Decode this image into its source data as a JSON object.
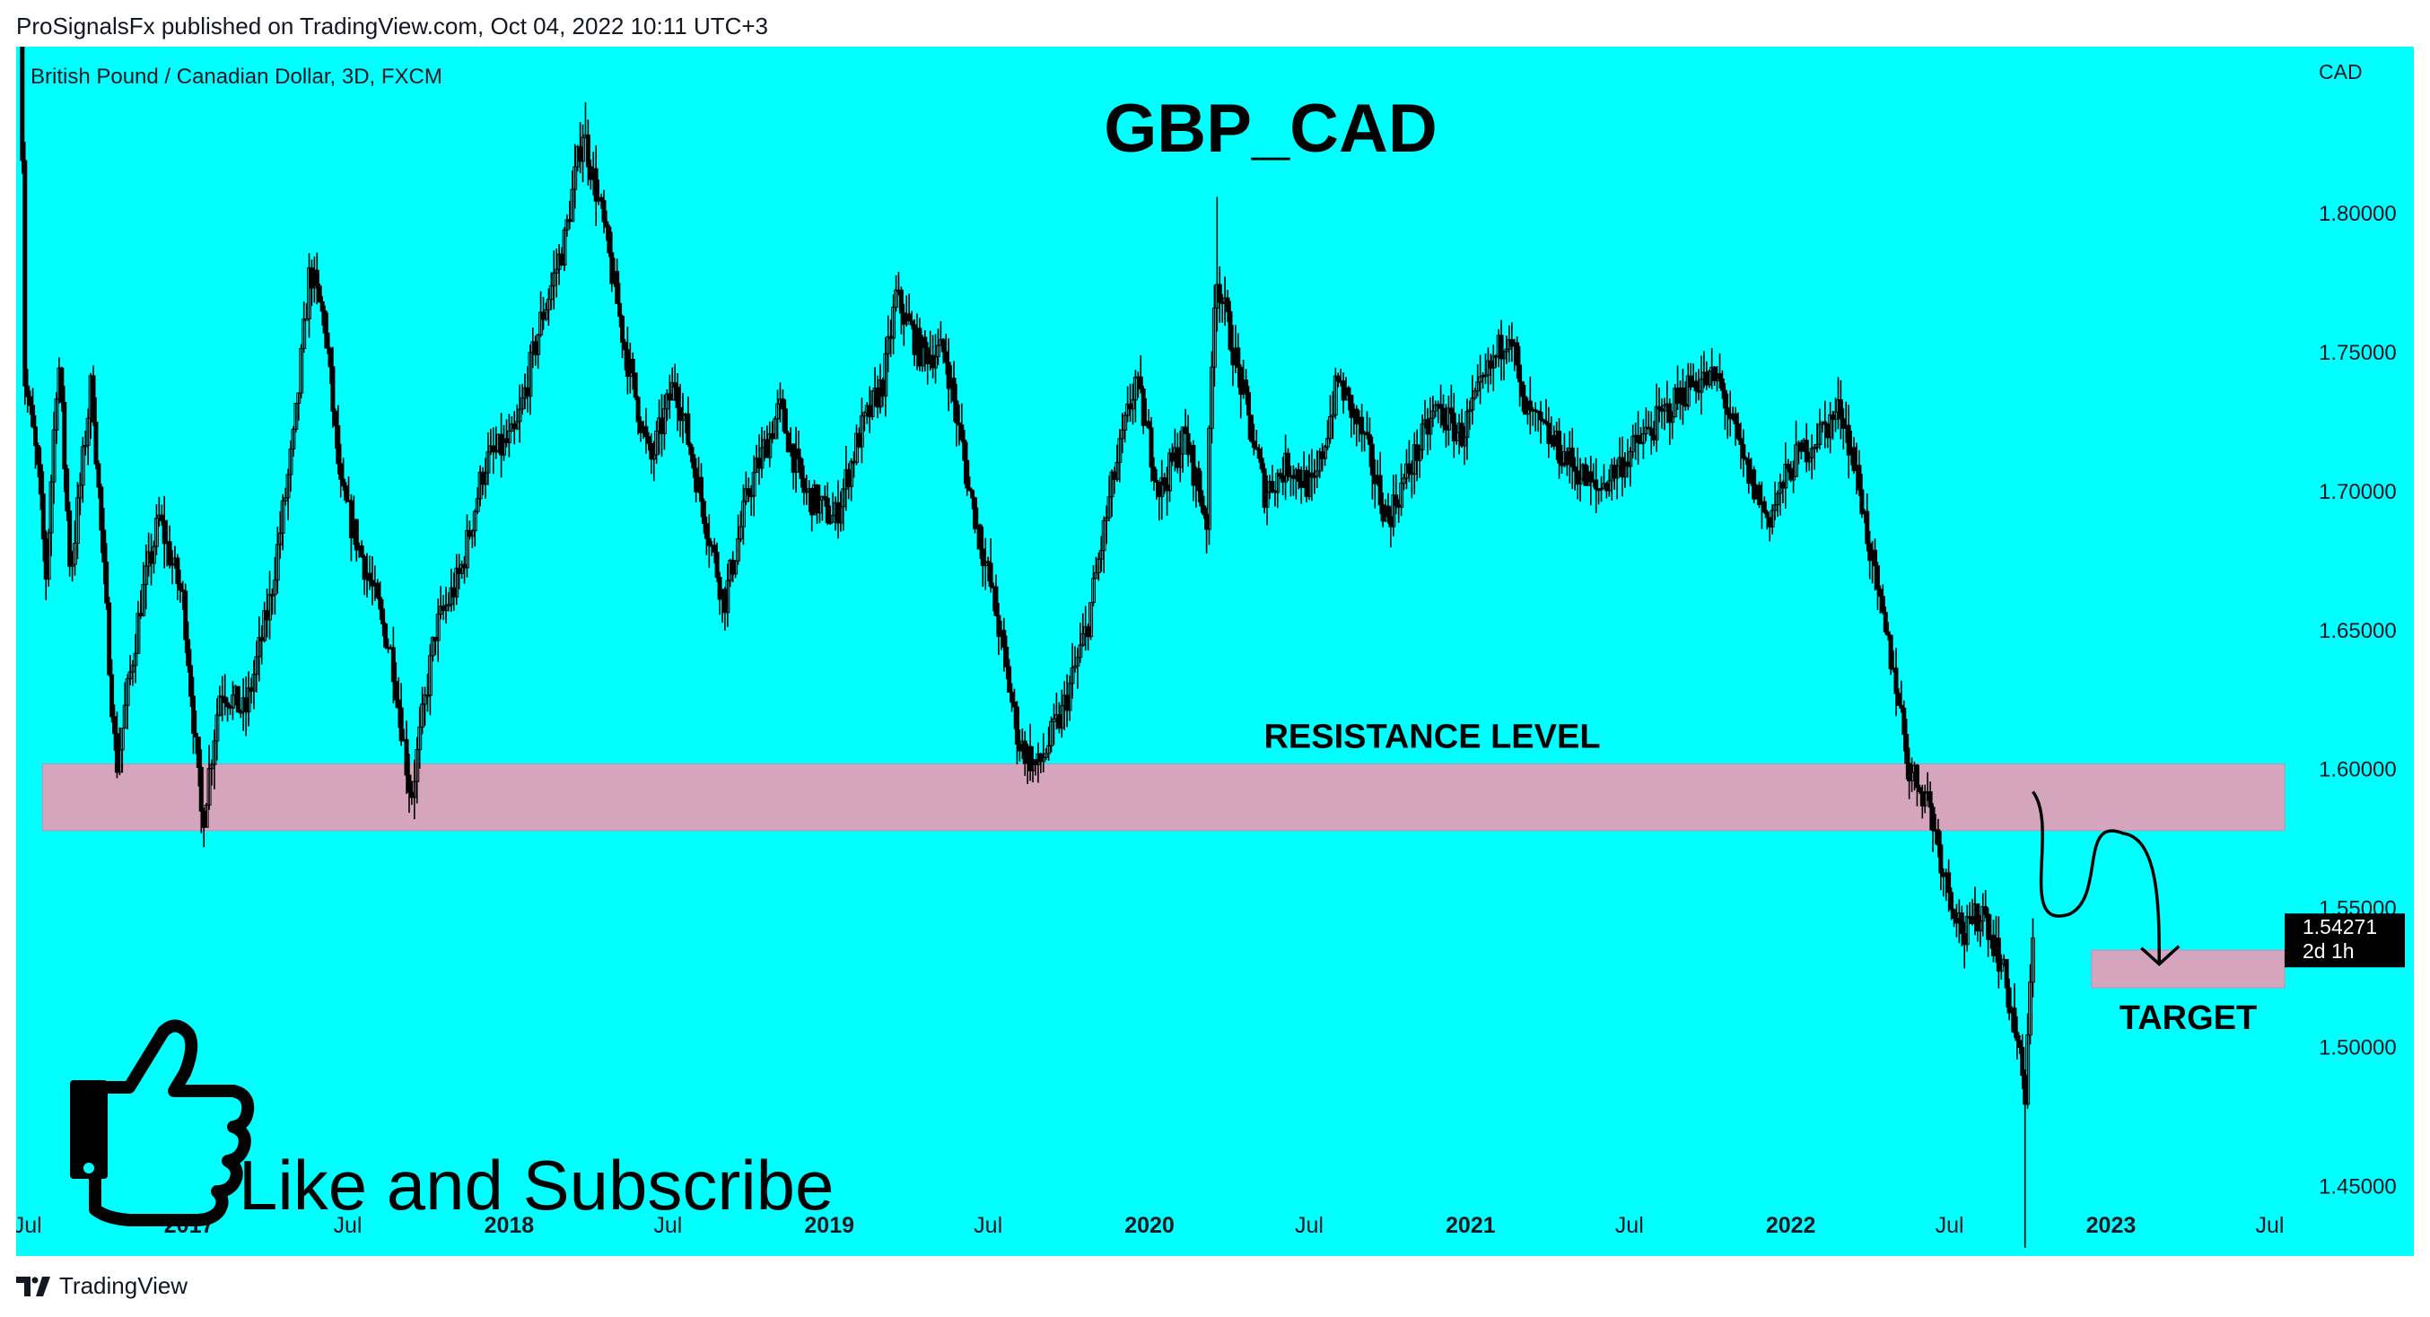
{
  "header": {
    "published": "ProSignalsFx published on TradingView.com, Oct 04, 2022 10:11 UTC+3"
  },
  "footer": {
    "brand": "TradingView"
  },
  "colors": {
    "background": "#00FFFF",
    "zone": "#D4A5BD",
    "candle": "#000000",
    "text": "#000000",
    "price_tag_bg": "#000000",
    "price_tag_text": "#FFFFFF"
  },
  "icons": {
    "thumb": "thumbs-up-icon",
    "brand": "tradingview-logo-icon"
  },
  "chart_data": {
    "type": "candlestick",
    "title": "GBP_CAD",
    "subtitle": "British Pound / Canadian Dollar, 3D, FXCM",
    "currency": "CAD",
    "ylim": [
      1.425,
      1.86
    ],
    "xlim": [
      "2016-06-18",
      "2023-07-20"
    ],
    "y_ticks": [
      "1.45000",
      "1.50000",
      "1.55000",
      "1.60000",
      "1.65000",
      "1.70000",
      "1.75000",
      "1.80000"
    ],
    "x_ticks": [
      {
        "label": "Jul",
        "date": "2016-07-01",
        "bold": false
      },
      {
        "label": "2017",
        "date": "2017-01-01",
        "bold": true
      },
      {
        "label": "Jul",
        "date": "2017-07-01",
        "bold": false
      },
      {
        "label": "2018",
        "date": "2018-01-01",
        "bold": true
      },
      {
        "label": "Jul",
        "date": "2018-07-01",
        "bold": false
      },
      {
        "label": "2019",
        "date": "2019-01-01",
        "bold": true
      },
      {
        "label": "Jul",
        "date": "2019-07-01",
        "bold": false
      },
      {
        "label": "2020",
        "date": "2020-01-01",
        "bold": true
      },
      {
        "label": "Jul",
        "date": "2020-07-01",
        "bold": false
      },
      {
        "label": "2021",
        "date": "2021-01-01",
        "bold": true
      },
      {
        "label": "Jul",
        "date": "2021-07-01",
        "bold": false
      },
      {
        "label": "2022",
        "date": "2022-01-01",
        "bold": true
      },
      {
        "label": "Jul",
        "date": "2022-07-01",
        "bold": false
      },
      {
        "label": "2023",
        "date": "2023-01-01",
        "bold": true
      },
      {
        "label": "Jul",
        "date": "2023-07-01",
        "bold": false
      }
    ],
    "price_path": [
      [
        "2016-06-22",
        1.905
      ],
      [
        "2016-06-28",
        1.74
      ],
      [
        "2016-07-12",
        1.71
      ],
      [
        "2016-07-22",
        1.67
      ],
      [
        "2016-08-05",
        1.75
      ],
      [
        "2016-08-19",
        1.67
      ],
      [
        "2016-09-12",
        1.74
      ],
      [
        "2016-10-10",
        1.6
      ],
      [
        "2016-11-07",
        1.66
      ],
      [
        "2016-11-28",
        1.69
      ],
      [
        "2016-12-26",
        1.66
      ],
      [
        "2017-01-16",
        1.58
      ],
      [
        "2017-02-06",
        1.63
      ],
      [
        "2017-03-06",
        1.62
      ],
      [
        "2017-04-03",
        1.66
      ],
      [
        "2017-05-01",
        1.72
      ],
      [
        "2017-05-19",
        1.78
      ],
      [
        "2017-06-05",
        1.76
      ],
      [
        "2017-06-23",
        1.7
      ],
      [
        "2017-07-24",
        1.67
      ],
      [
        "2017-08-21",
        1.64
      ],
      [
        "2017-09-11",
        1.59
      ],
      [
        "2017-10-09",
        1.65
      ],
      [
        "2017-11-06",
        1.67
      ],
      [
        "2017-12-04",
        1.71
      ],
      [
        "2018-01-08",
        1.72
      ],
      [
        "2018-02-05",
        1.76
      ],
      [
        "2018-03-05",
        1.79
      ],
      [
        "2018-03-26",
        1.83
      ],
      [
        "2018-04-16",
        1.8
      ],
      [
        "2018-05-14",
        1.75
      ],
      [
        "2018-06-11",
        1.71
      ],
      [
        "2018-07-09",
        1.74
      ],
      [
        "2018-08-06",
        1.7
      ],
      [
        "2018-09-03",
        1.66
      ],
      [
        "2018-10-01",
        1.7
      ],
      [
        "2018-11-05",
        1.73
      ],
      [
        "2018-12-03",
        1.7
      ],
      [
        "2019-01-07",
        1.69
      ],
      [
        "2019-02-04",
        1.72
      ],
      [
        "2019-03-04",
        1.74
      ],
      [
        "2019-03-18",
        1.77
      ],
      [
        "2019-04-15",
        1.75
      ],
      [
        "2019-05-13",
        1.75
      ],
      [
        "2019-06-10",
        1.7
      ],
      [
        "2019-07-08",
        1.66
      ],
      [
        "2019-08-05",
        1.61
      ],
      [
        "2019-08-26",
        1.6
      ],
      [
        "2019-09-23",
        1.62
      ],
      [
        "2019-10-21",
        1.65
      ],
      [
        "2019-11-18",
        1.7
      ],
      [
        "2019-12-16",
        1.74
      ],
      [
        "2020-01-13",
        1.7
      ],
      [
        "2020-02-10",
        1.72
      ],
      [
        "2020-03-06",
        1.69
      ],
      [
        "2020-03-16",
        1.78
      ],
      [
        "2020-04-13",
        1.74
      ],
      [
        "2020-05-11",
        1.7
      ],
      [
        "2020-06-08",
        1.71
      ],
      [
        "2020-07-06",
        1.7
      ],
      [
        "2020-08-03",
        1.74
      ],
      [
        "2020-08-31",
        1.72
      ],
      [
        "2020-09-28",
        1.69
      ],
      [
        "2020-10-26",
        1.71
      ],
      [
        "2020-11-23",
        1.73
      ],
      [
        "2020-12-21",
        1.72
      ],
      [
        "2021-01-18",
        1.74
      ],
      [
        "2021-02-15",
        1.76
      ],
      [
        "2021-03-01",
        1.73
      ],
      [
        "2021-03-29",
        1.72
      ],
      [
        "2021-04-26",
        1.71
      ],
      [
        "2021-05-24",
        1.7
      ],
      [
        "2021-06-21",
        1.71
      ],
      [
        "2021-07-19",
        1.72
      ],
      [
        "2021-08-16",
        1.73
      ],
      [
        "2021-09-13",
        1.74
      ],
      [
        "2021-10-11",
        1.74
      ],
      [
        "2021-11-08",
        1.71
      ],
      [
        "2021-12-06",
        1.69
      ],
      [
        "2022-01-03",
        1.71
      ],
      [
        "2022-01-31",
        1.72
      ],
      [
        "2022-02-28",
        1.73
      ],
      [
        "2022-03-21",
        1.7
      ],
      [
        "2022-04-11",
        1.66
      ],
      [
        "2022-05-02",
        1.63
      ],
      [
        "2022-05-16",
        1.6
      ],
      [
        "2022-06-06",
        1.59
      ],
      [
        "2022-06-27",
        1.56
      ],
      [
        "2022-07-18",
        1.54
      ],
      [
        "2022-08-08",
        1.55
      ],
      [
        "2022-08-29",
        1.53
      ],
      [
        "2022-09-12",
        1.51
      ],
      [
        "2022-09-26",
        1.48
      ],
      [
        "2022-09-28",
        1.5
      ],
      [
        "2022-10-04",
        1.54271
      ]
    ],
    "extremes": [
      {
        "date": "2016-06-22",
        "price": 1.905
      },
      {
        "date": "2017-01-18",
        "price": 1.572
      },
      {
        "date": "2018-03-28",
        "price": 1.84
      },
      {
        "date": "2020-03-18",
        "price": 1.806
      },
      {
        "date": "2022-09-26",
        "price": 1.428
      }
    ],
    "resistance_zone": {
      "label": "RESISTANCE LEVEL",
      "price_low": 1.578,
      "price_high": 1.602,
      "date_start": "2016-07-18",
      "date_end": "2023-07-18"
    },
    "target_zone": {
      "label": "TARGET",
      "price_low": 1.5215,
      "price_high": 1.535,
      "date_start": "2022-12-10",
      "date_end": "2023-07-18"
    },
    "projection": [
      [
        "2022-10-04",
        1.592
      ],
      [
        "2022-11-15",
        1.548
      ],
      [
        "2023-01-15",
        1.577
      ],
      [
        "2023-02-25",
        1.53
      ]
    ],
    "last_price": {
      "value": "1.54271",
      "countdown": "2d 1h"
    }
  },
  "promo": {
    "text": "Like and Subscribe"
  }
}
